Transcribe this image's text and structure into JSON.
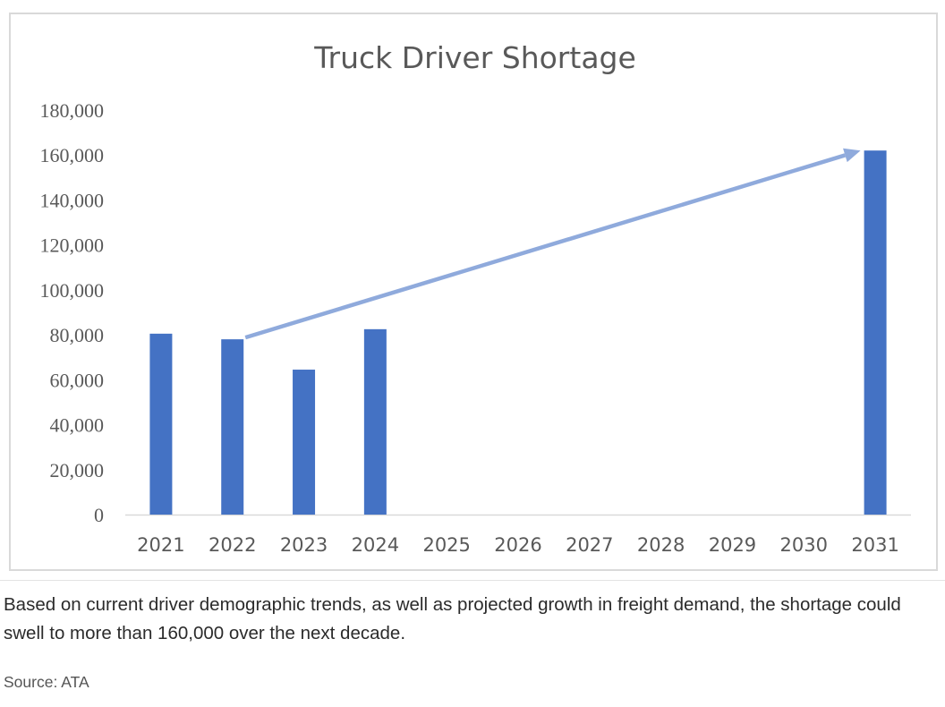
{
  "chart_data": {
    "type": "bar",
    "title": "Truck Driver Shortage",
    "categories": [
      "2021",
      "2022",
      "2023",
      "2024",
      "2025",
      "2026",
      "2027",
      "2028",
      "2029",
      "2030",
      "2031"
    ],
    "values": [
      80500,
      78000,
      64500,
      82500,
      null,
      null,
      null,
      null,
      null,
      null,
      162000
    ],
    "ylim": [
      0,
      180000
    ],
    "yticks": [
      "0",
      "20,000",
      "40,000",
      "60,000",
      "80,000",
      "100,000",
      "120,000",
      "140,000",
      "160,000",
      "180,000"
    ],
    "xlabel": "",
    "ylabel": "",
    "grid": false,
    "legend": "none",
    "trend_arrow": {
      "from_category": "2022",
      "from_value": 80000,
      "to_category": "2031",
      "to_value": 162000
    },
    "colors": {
      "bar": "#4472c4",
      "arrow": "#8faadc",
      "axis": "#d9d9d9",
      "tick_text": "#595959",
      "title": "#595959"
    }
  },
  "caption": "Based on current driver demographic trends, as well as projected growth in freight demand, the shortage could swell to more than 160,000 over the next decade.",
  "source": "Source: ATA"
}
